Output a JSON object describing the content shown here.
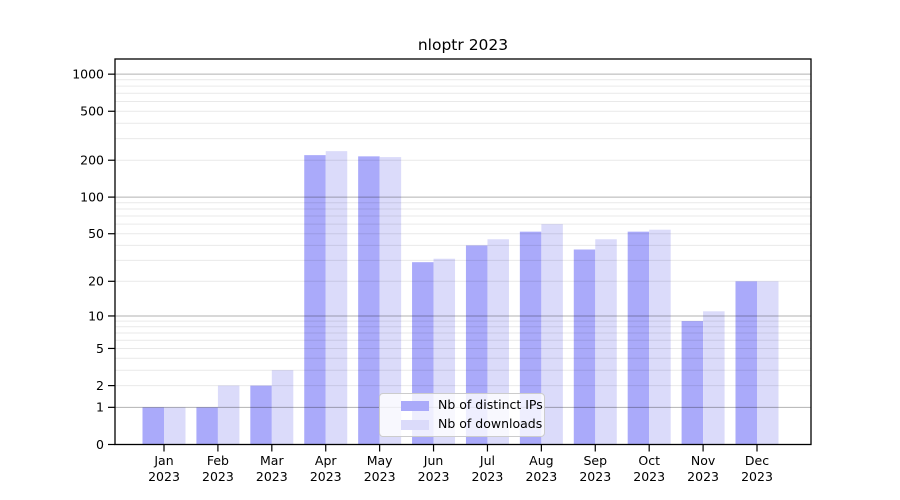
{
  "chart_data": {
    "type": "bar",
    "title": "nloptr 2023",
    "categories": [
      "Jan",
      "Feb",
      "Mar",
      "Apr",
      "May",
      "Jun",
      "Jul",
      "Aug",
      "Sep",
      "Oct",
      "Nov",
      "Dec"
    ],
    "category_year": "2023",
    "series": [
      {
        "name": "Nb of distinct IPs",
        "color": "#aaaafa",
        "values": [
          1,
          1,
          2,
          220,
          215,
          29,
          40,
          52,
          37,
          52,
          9,
          20
        ]
      },
      {
        "name": "Nb of downloads",
        "color": "#dbdbfa",
        "values": [
          1,
          2,
          3,
          237,
          212,
          31,
          45,
          60,
          45,
          54,
          11,
          20
        ]
      }
    ],
    "yticks": [
      0,
      1,
      2,
      5,
      10,
      20,
      50,
      100,
      200,
      500,
      1000
    ],
    "yscale": "log10(x+1)",
    "ylim": [
      0,
      1320
    ],
    "grid": true,
    "grid_major_at": [
      1,
      10,
      100,
      1000
    ],
    "legend_position": "lower center",
    "colors": {
      "axis": "#000000",
      "grid_major": "#b3b3b3",
      "grid_minor": "#ececec",
      "background": "#ffffff"
    }
  }
}
